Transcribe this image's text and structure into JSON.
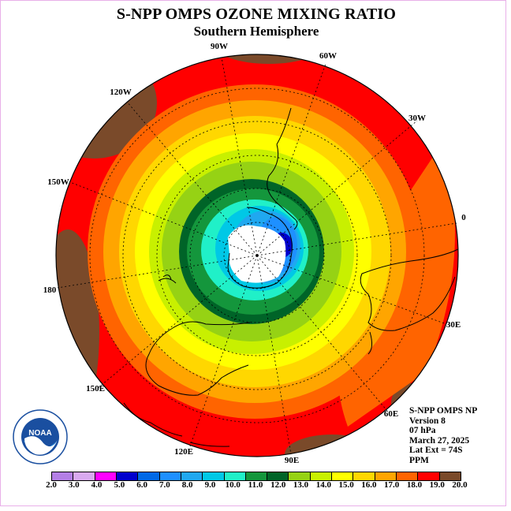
{
  "title": "S-NPP OMPS OZONE MIXING RATIO",
  "subtitle": "Southern Hemisphere",
  "longitude_labels": [
    "90W",
    "60W",
    "30W",
    "0",
    "30E",
    "60E",
    "90E",
    "120E",
    "150E",
    "180",
    "150W",
    "120W"
  ],
  "info": {
    "instrument": "S-NPP OMPS NP",
    "version": "Version 8",
    "pressure": "07 hPa",
    "date": "March 27, 2025",
    "lat_ext": "Lat Ext = 74S",
    "units": "PPM"
  },
  "logo_text": "NOAA",
  "colorbar": {
    "labels": [
      "2.0",
      "3.0",
      "4.0",
      "5.0",
      "6.0",
      "7.0",
      "8.0",
      "9.0",
      "10.0",
      "11.0",
      "12.0",
      "13.0",
      "14.0",
      "15.0",
      "16.0",
      "17.0",
      "18.0",
      "19.0",
      "20.0"
    ],
    "colors": [
      "#b47fe6",
      "#d9aaf0",
      "#ff00ff",
      "#0000cd",
      "#0068e6",
      "#1e90ff",
      "#20a8f0",
      "#00c8e6",
      "#20f0c8",
      "#14963c",
      "#006428",
      "#96d214",
      "#c8f000",
      "#ffff00",
      "#ffd700",
      "#ffa500",
      "#ff6400",
      "#ff0000",
      "#7a4a2a"
    ]
  }
}
